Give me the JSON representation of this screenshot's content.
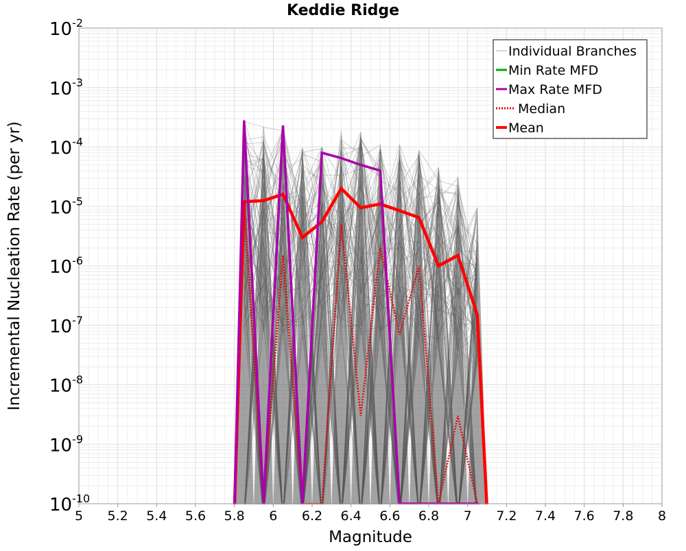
{
  "chart_data": {
    "type": "line",
    "title": "Keddie Ridge",
    "xlabel": "Magnitude",
    "ylabel": "Incremental Nucleation Rate (per yr)",
    "x_scale": "linear",
    "y_scale": "log",
    "xlim": [
      5,
      8
    ],
    "ylim": [
      1e-10,
      0.01
    ],
    "x_ticks": [
      "5",
      "5.2",
      "5.4",
      "5.6",
      "5.8",
      "6",
      "6.2",
      "6.4",
      "6.6",
      "6.8",
      "7",
      "7.2",
      "7.4",
      "7.6",
      "7.8",
      "8"
    ],
    "y_ticks": [
      {
        "base": "10",
        "exp": "-10"
      },
      {
        "base": "10",
        "exp": "-9"
      },
      {
        "base": "10",
        "exp": "-8"
      },
      {
        "base": "10",
        "exp": "-7"
      },
      {
        "base": "10",
        "exp": "-6"
      },
      {
        "base": "10",
        "exp": "-5"
      },
      {
        "base": "10",
        "exp": "-4"
      },
      {
        "base": "10",
        "exp": "-3"
      },
      {
        "base": "10",
        "exp": "-2"
      }
    ],
    "grid": true,
    "legend_position": "top-right",
    "legend": [
      {
        "label": "Individual Branches",
        "color": "#aaaaaa",
        "style": "thin"
      },
      {
        "label": "Min Rate MFD",
        "color": "#00aa00",
        "style": "solid"
      },
      {
        "label": "Max Rate MFD",
        "color": "#aa00aa",
        "style": "solid"
      },
      {
        "label": "Median",
        "color": "#ee0000",
        "style": "dotted"
      },
      {
        "label": "Mean",
        "color": "#ff0000",
        "style": "thick"
      }
    ],
    "x": [
      5.85,
      5.95,
      6.05,
      6.15,
      6.25,
      6.35,
      6.45,
      6.55,
      6.65,
      6.75,
      6.85,
      6.95,
      7.05
    ],
    "series": [
      {
        "name": "Mean",
        "color": "#ff0000",
        "values": [
          1.2e-05,
          1.25e-05,
          1.6e-05,
          3e-06,
          5.5e-06,
          2e-05,
          9.5e-06,
          1.1e-05,
          8.5e-06,
          6.5e-06,
          1e-06,
          1.5e-06,
          1.5e-07
        ]
      },
      {
        "name": "Median",
        "color": "#ee0000",
        "values": [
          1.2e-05,
          1e-10,
          1.5e-06,
          1e-10,
          1e-10,
          5e-06,
          3e-09,
          2e-06,
          7e-08,
          1e-06,
          1e-10,
          3e-09,
          1e-10
        ]
      },
      {
        "name": "Max Rate MFD",
        "color": "#aa00aa",
        "values": [
          0.00028,
          1e-10,
          0.00023,
          1e-10,
          8e-05,
          6.5e-05,
          5e-05,
          4e-05,
          1e-10,
          1e-10,
          1e-10,
          1e-10,
          1e-10
        ]
      },
      {
        "name": "Individual Branches",
        "color": "#555555",
        "values_min": [
          1e-10,
          1e-10,
          1e-10,
          1e-10,
          1e-10,
          1e-10,
          1e-10,
          1e-10,
          1e-10,
          1e-10,
          1e-10,
          1e-10,
          1e-10
        ],
        "values_max": [
          0.00028,
          0.00025,
          0.00023,
          0.0001,
          0.0001,
          0.00019,
          0.00019,
          0.00012,
          0.00011,
          9e-05,
          5e-05,
          3.5e-05,
          1e-05
        ]
      }
    ]
  }
}
